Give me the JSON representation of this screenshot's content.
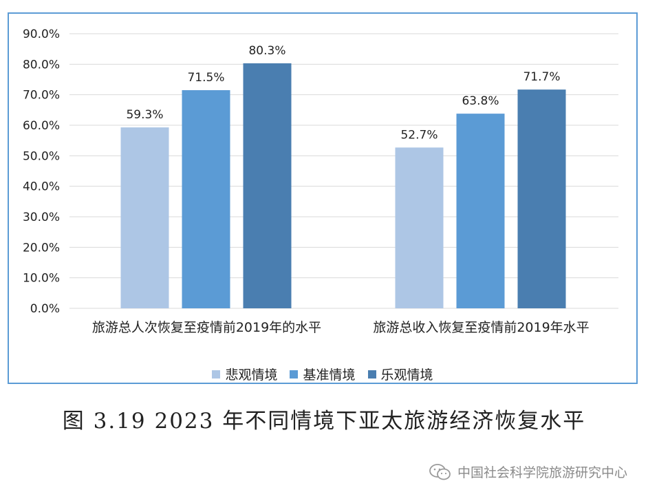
{
  "chart_data": {
    "type": "bar",
    "categories": [
      "旅游总人次恢复至疫情前2019年的水平",
      "旅游总收入恢复至疫情前2019年水平"
    ],
    "series": [
      {
        "name": "悲观情境",
        "values": [
          59.3,
          52.7
        ],
        "color": "#adc6e5"
      },
      {
        "name": "基准情境",
        "values": [
          71.5,
          63.8
        ],
        "color": "#5b9bd5"
      },
      {
        "name": "乐观情境",
        "values": [
          80.3,
          71.7
        ],
        "color": "#4a7eb0"
      }
    ],
    "data_labels": [
      [
        "59.3%",
        "52.7%"
      ],
      [
        "71.5%",
        "63.8%"
      ],
      [
        "80.3%",
        "71.7%"
      ]
    ],
    "ylim": [
      0,
      90
    ],
    "yticks": [
      0,
      10,
      20,
      30,
      40,
      50,
      60,
      70,
      80,
      90
    ],
    "ytick_labels": [
      "0.0%",
      "10.0%",
      "20.0%",
      "30.0%",
      "40.0%",
      "50.0%",
      "60.0%",
      "70.0%",
      "80.0%",
      "90.0%"
    ],
    "grid": true,
    "legend": "bottom"
  },
  "caption": "图 3.19 2023 年不同情境下亚太旅游经济恢复水平",
  "watermark": {
    "text": "中国社会科学院旅游研究中心",
    "icon": "wechat-icon"
  }
}
